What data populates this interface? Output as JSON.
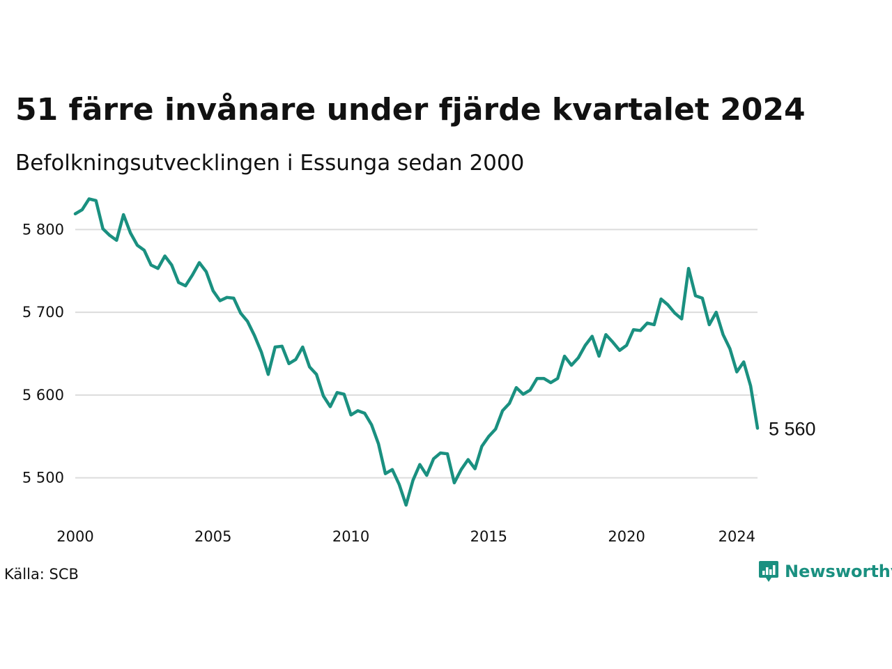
{
  "title": "51 färre invånare under fjärde kvartalet 2024",
  "subtitle": "Befolkningsutvecklingen i Essunga sedan 2000",
  "source": "Källa: SCB",
  "brand": {
    "name": "Newsworthy",
    "color": "#1a9080",
    "icon": "bar-chart-speech-bubble-icon"
  },
  "chart_data": {
    "type": "line",
    "color": "#1a9080",
    "grid": true,
    "ylim": [
      5450,
      5850
    ],
    "yticks": [
      5500,
      5600,
      5700,
      5800
    ],
    "ytick_labels": [
      "5 500",
      "5 600",
      "5 700",
      "5 800"
    ],
    "xlim": [
      2000,
      2024.75
    ],
    "xticks": [
      2000,
      2005,
      2010,
      2015,
      2020,
      2024
    ],
    "xtick_labels": [
      "2000",
      "2005",
      "2010",
      "2015",
      "2020",
      "2024"
    ],
    "end_label": "5 560",
    "series": [
      {
        "x_start": 2000,
        "x_step": 0.25,
        "values": [
          5819,
          5824,
          5837,
          5835,
          5801,
          5793,
          5787,
          5818,
          5796,
          5781,
          5775,
          5757,
          5753,
          5768,
          5757,
          5736,
          5732,
          5745,
          5760,
          5749,
          5726,
          5714,
          5718,
          5717,
          5699,
          5689,
          5672,
          5652,
          5625,
          5658,
          5659,
          5638,
          5643,
          5658,
          5634,
          5625,
          5599,
          5586,
          5603,
          5601,
          5576,
          5581,
          5578,
          5564,
          5541,
          5505,
          5510,
          5492,
          5467,
          5497,
          5516,
          5503,
          5523,
          5530,
          5529,
          5494,
          5510,
          5522,
          5511,
          5538,
          5550,
          5559,
          5581,
          5590,
          5609,
          5601,
          5606,
          5620,
          5620,
          5615,
          5620,
          5647,
          5636,
          5645,
          5660,
          5671,
          5647,
          5673,
          5664,
          5654,
          5660,
          5679,
          5678,
          5687,
          5685,
          5716,
          5709,
          5699,
          5692,
          5753,
          5720,
          5717,
          5685,
          5700,
          5673,
          5656,
          5628,
          5640,
          5611,
          5560
        ]
      }
    ]
  }
}
